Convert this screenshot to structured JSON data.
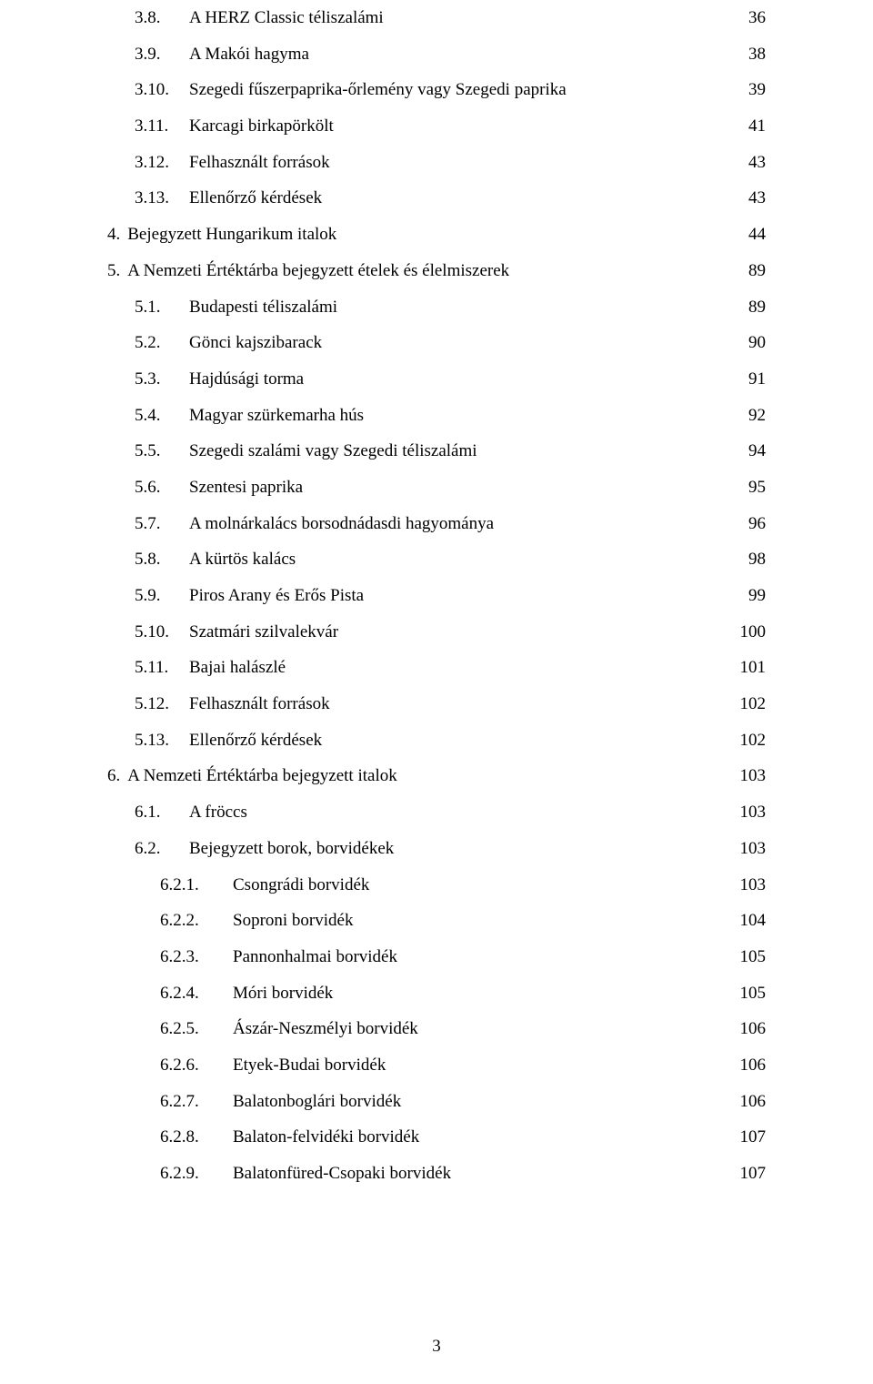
{
  "page_number": "3",
  "font": {
    "family": "Times New Roman",
    "size_pt": 14,
    "color": "#000000"
  },
  "background_color": "#ffffff",
  "toc": [
    {
      "level": 2,
      "indent": 1,
      "number": "3.8.",
      "title": "A HERZ Classic téliszalámi",
      "page": "36"
    },
    {
      "level": 2,
      "indent": 1,
      "number": "3.9.",
      "title": "A Makói hagyma",
      "page": "38"
    },
    {
      "level": 2,
      "indent": 1,
      "number": "3.10.",
      "title": "Szegedi fűszerpaprika-őrlemény vagy Szegedi paprika",
      "page": "39"
    },
    {
      "level": 2,
      "indent": 1,
      "number": "3.11.",
      "title": "Karcagi birkapörkölt",
      "page": "41"
    },
    {
      "level": 2,
      "indent": 1,
      "number": "3.12.",
      "title": "Felhasznált források",
      "page": "43"
    },
    {
      "level": 2,
      "indent": 1,
      "number": "3.13.",
      "title": "Ellenőrző kérdések",
      "page": "43"
    },
    {
      "level": 1,
      "indent": 0,
      "number": "4.",
      "title": "Bejegyzett Hungarikum italok",
      "page": "44"
    },
    {
      "level": 1,
      "indent": 0,
      "number": "5.",
      "title": "A Nemzeti Értéktárba bejegyzett ételek és élelmiszerek",
      "page": "89"
    },
    {
      "level": 2,
      "indent": 1,
      "number": "5.1.",
      "title": "Budapesti téliszalámi",
      "page": "89"
    },
    {
      "level": 2,
      "indent": 1,
      "number": "5.2.",
      "title": "Gönci kajszibarack",
      "page": "90"
    },
    {
      "level": 2,
      "indent": 1,
      "number": "5.3.",
      "title": "Hajdúsági torma",
      "page": "91"
    },
    {
      "level": 2,
      "indent": 1,
      "number": "5.4.",
      "title": "Magyar szürkemarha hús",
      "page": "92"
    },
    {
      "level": 2,
      "indent": 1,
      "number": "5.5.",
      "title": "Szegedi szalámi vagy Szegedi téliszalámi",
      "page": "94"
    },
    {
      "level": 2,
      "indent": 1,
      "number": "5.6.",
      "title": "Szentesi paprika",
      "page": "95"
    },
    {
      "level": 2,
      "indent": 1,
      "number": "5.7.",
      "title": "A molnárkalács borsodnádasdi hagyománya",
      "page": "96"
    },
    {
      "level": 2,
      "indent": 1,
      "number": "5.8.",
      "title": "A kürtös kalács",
      "page": "98"
    },
    {
      "level": 2,
      "indent": 1,
      "number": "5.9.",
      "title": "Piros Arany és Erős Pista",
      "page": "99"
    },
    {
      "level": 2,
      "indent": 1,
      "number": "5.10.",
      "title": "Szatmári szilvalekvár",
      "page": "100"
    },
    {
      "level": 2,
      "indent": 1,
      "number": "5.11.",
      "title": "Bajai halászlé",
      "page": "101"
    },
    {
      "level": 2,
      "indent": 1,
      "number": "5.12.",
      "title": "Felhasznált források",
      "page": "102"
    },
    {
      "level": 2,
      "indent": 1,
      "number": "5.13.",
      "title": "Ellenőrző kérdések",
      "page": "102"
    },
    {
      "level": 1,
      "indent": 0,
      "number": "6.",
      "title": "A Nemzeti Értéktárba bejegyzett italok",
      "page": "103"
    },
    {
      "level": 2,
      "indent": 1,
      "number": "6.1.",
      "title": "A fröccs",
      "page": "103"
    },
    {
      "level": 2,
      "indent": 1,
      "number": "6.2.",
      "title": "Bejegyzett borok, borvidékek",
      "page": "103"
    },
    {
      "level": 3,
      "indent": 2,
      "number": "6.2.1.",
      "title": "Csongrádi borvidék",
      "page": "103"
    },
    {
      "level": 3,
      "indent": 2,
      "number": "6.2.2.",
      "title": "Soproni borvidék",
      "page": "104"
    },
    {
      "level": 3,
      "indent": 2,
      "number": "6.2.3.",
      "title": "Pannonhalmai borvidék",
      "page": "105"
    },
    {
      "level": 3,
      "indent": 2,
      "number": "6.2.4.",
      "title": "Móri borvidék",
      "page": "105"
    },
    {
      "level": 3,
      "indent": 2,
      "number": "6.2.5.",
      "title": "Ászár-Neszmélyi borvidék",
      "page": "106"
    },
    {
      "level": 3,
      "indent": 2,
      "number": "6.2.6.",
      "title": "Etyek-Budai borvidék",
      "page": "106"
    },
    {
      "level": 3,
      "indent": 2,
      "number": "6.2.7.",
      "title": "Balatonboglári borvidék",
      "page": "106"
    },
    {
      "level": 3,
      "indent": 2,
      "number": "6.2.8.",
      "title": "Balaton-felvidéki borvidék",
      "page": "107"
    },
    {
      "level": 3,
      "indent": 2,
      "number": "6.2.9.",
      "title": "Balatonfüred-Csopaki borvidék",
      "page": "107"
    }
  ]
}
